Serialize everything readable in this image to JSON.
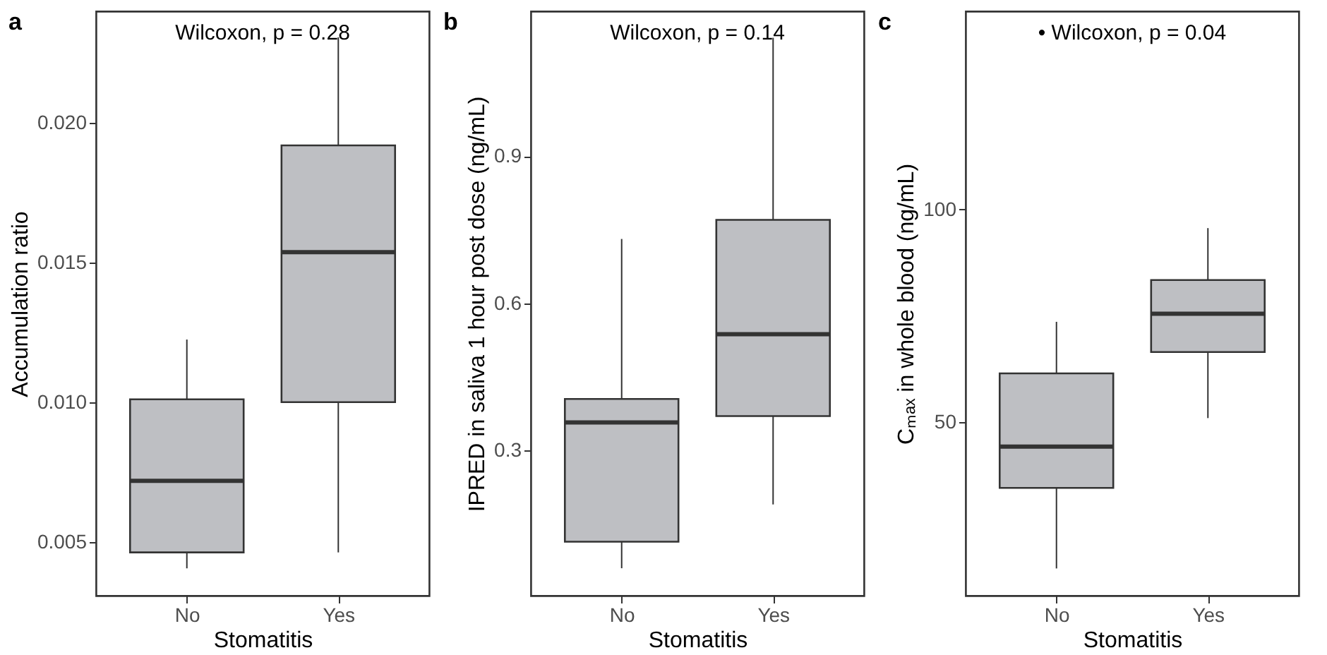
{
  "chart_data": [
    {
      "type": "box",
      "title": "a",
      "categories": [
        "No",
        "Yes"
      ],
      "xlabel": "Stomatitis",
      "ylabel": "Accumulation ratio",
      "ylim": [
        0.00307,
        0.02399
      ],
      "yticks": [
        {
          "value": 0.005,
          "label": "0.005"
        },
        {
          "value": 0.01,
          "label": "0.010"
        },
        {
          "value": 0.015,
          "label": "0.015"
        },
        {
          "value": 0.02,
          "label": "0.020"
        }
      ],
      "grid": false,
      "legend": false,
      "annotations": [
        "Wilcoxon, p = 0.28"
      ],
      "series": [
        {
          "color": "#bebfc3",
          "boxes": [
            {
              "low": 0.00405,
              "q1": 0.00462,
              "median": 0.00718,
              "q3": 0.0101,
              "high": 0.01224
            },
            {
              "low": 0.00462,
              "q1": 0.01,
              "median": 0.01537,
              "q3": 0.01919,
              "high": 0.02306
            }
          ]
        }
      ]
    },
    {
      "type": "box",
      "title": "b",
      "categories": [
        "No",
        "Yes"
      ],
      "xlabel": "Stomatitis",
      "ylabel": "IPRED in saliva 1 hour post dose (ng/mL)",
      "ylim": [
        0.004,
        1.195
      ],
      "yticks": [
        0.3,
        0.6,
        0.9
      ],
      "grid": false,
      "legend": false,
      "annotations": [
        "Wilcoxon, p = 0.14"
      ],
      "series": [
        {
          "color": "#bebfc3",
          "boxes": [
            {
              "low": 0.06,
              "q1": 0.114,
              "median": 0.357,
              "q3": 0.405,
              "high": 0.731
            },
            {
              "low": 0.19,
              "q1": 0.37,
              "median": 0.537,
              "q3": 0.77,
              "high": 1.141
            }
          ]
        }
      ]
    },
    {
      "type": "box",
      "title": "c",
      "categories": [
        "No",
        "Yes"
      ],
      "xlabel": "Stomatitis",
      "ylabel": "Cₘₐₓ in whole blood (ng/mL)",
      "ylim": [
        9.3,
        146.5
      ],
      "yticks": [
        50,
        100
      ],
      "grid": false,
      "legend": false,
      "annotations": [
        "•  Wilcoxon, p = 0.04"
      ],
      "series": [
        {
          "color": "#bebfc3",
          "boxes": [
            {
              "low": 15.7,
              "q1": 34.6,
              "median": 44.3,
              "q3": 61.5,
              "high": 73.6
            },
            {
              "low": 51.0,
              "q1": 66.5,
              "median": 75.5,
              "q3": 83.4,
              "high": 95.6
            }
          ]
        }
      ]
    }
  ]
}
